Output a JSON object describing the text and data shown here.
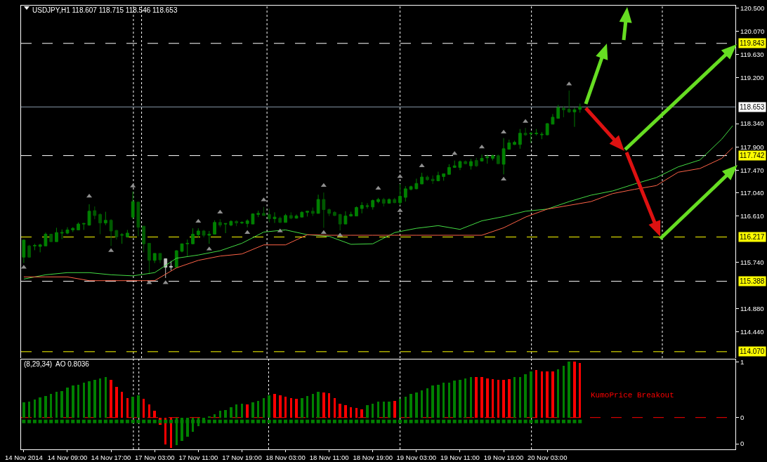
{
  "chart_data": [
    {
      "type": "candlestick",
      "title": "USDJPY,H1 118.607 118.715 118.546 118.653",
      "tick_labels": "y",
      "categories": [
        null,
        null,
        null,
        null,
        null,
        null,
        null,
        null,
        null,
        null,
        null,
        null,
        null,
        null,
        null,
        null,
        null,
        null,
        null,
        null,
        null,
        null,
        null,
        null,
        null,
        null,
        null,
        null,
        null,
        null,
        null,
        null,
        null,
        null,
        null,
        null,
        null,
        null,
        null,
        null,
        null,
        null,
        null,
        null,
        null,
        null,
        null,
        null,
        null,
        null,
        null,
        null,
        null,
        null,
        null,
        null,
        null,
        null,
        null,
        null,
        null,
        null,
        null,
        null,
        null,
        null,
        null,
        null,
        null,
        null,
        null,
        null,
        null,
        null,
        null,
        null,
        null,
        null,
        null,
        null,
        null,
        null,
        null,
        null,
        null,
        null,
        null,
        null,
        null,
        null,
        null,
        null,
        null,
        null,
        null,
        null,
        null,
        null,
        null,
        null,
        null,
        null,
        null,
        null,
        null,
        null,
        null,
        null,
        null,
        null,
        null,
        null,
        null,
        null,
        null,
        null,
        null,
        null,
        null,
        null,
        null,
        null,
        null,
        null,
        null,
        null,
        null,
        null,
        null,
        null,
        null
      ],
      "ohlc": [
        [
          115.84,
          116.17,
          115.73,
          116.16
        ],
        [
          116.05,
          116.07,
          115.83,
          115.84
        ],
        [
          116.05,
          116.09,
          115.97,
          116.06
        ],
        [
          116.04,
          116.09,
          115.93,
          116.07
        ],
        [
          116.05,
          116.3,
          116.05,
          116.27
        ],
        [
          116.27,
          116.27,
          116.13,
          116.13
        ],
        [
          116.13,
          116.39,
          116.13,
          116.3
        ],
        [
          116.29,
          116.36,
          116.18,
          116.3
        ],
        [
          116.29,
          116.4,
          116.27,
          116.35
        ],
        [
          116.35,
          116.4,
          116.31,
          116.38
        ],
        [
          116.35,
          116.49,
          116.35,
          116.46
        ],
        [
          116.46,
          116.48,
          116.35,
          116.47
        ],
        [
          116.44,
          116.83,
          116.43,
          116.7
        ],
        [
          116.71,
          116.79,
          116.55,
          116.62
        ],
        [
          116.64,
          116.66,
          116.27,
          116.48
        ],
        [
          116.48,
          116.69,
          116.44,
          116.53
        ],
        [
          116.53,
          116.55,
          116.05,
          116.33
        ],
        [
          116.34,
          116.35,
          116.17,
          116.22
        ],
        [
          116.25,
          116.29,
          116.09,
          116.26
        ],
        [
          116.22,
          116.35,
          116.22,
          116.29
        ],
        [
          116.59,
          117.07,
          116.56,
          116.88
        ],
        [
          116.87,
          116.88,
          116.23,
          116.4
        ],
        [
          116.42,
          116.42,
          115.93,
          116.09
        ],
        [
          116.1,
          116.1,
          115.52,
          115.78
        ],
        [
          115.78,
          115.91,
          115.73,
          115.91
        ],
        [
          115.91,
          115.91,
          115.73,
          115.79
        ],
        [
          115.81,
          115.81,
          115.45,
          115.65
        ],
        [
          115.65,
          115.77,
          115.59,
          115.67
        ],
        [
          115.65,
          115.97,
          115.64,
          115.96
        ],
        [
          115.95,
          116.09,
          115.93,
          116.09
        ],
        [
          116.09,
          116.17,
          115.86,
          116.1
        ],
        [
          116.09,
          116.38,
          116.08,
          116.27
        ],
        [
          116.26,
          116.38,
          116.21,
          116.33
        ],
        [
          116.33,
          116.35,
          116.21,
          116.25
        ],
        [
          116.25,
          116.33,
          116.09,
          116.27
        ],
        [
          116.27,
          116.53,
          116.27,
          116.49
        ],
        [
          116.49,
          116.55,
          116.4,
          116.44
        ],
        [
          116.46,
          116.47,
          116.29,
          116.47
        ],
        [
          116.44,
          116.53,
          116.42,
          116.51
        ],
        [
          116.51,
          116.53,
          116.42,
          116.48
        ],
        [
          116.48,
          116.51,
          116.46,
          116.49
        ],
        [
          116.47,
          116.55,
          116.4,
          116.52
        ],
        [
          116.46,
          116.66,
          116.46,
          116.65
        ],
        [
          116.64,
          116.71,
          116.59,
          116.66
        ],
        [
          116.66,
          116.78,
          116.62,
          116.62
        ],
        [
          116.64,
          116.75,
          116.49,
          116.56
        ],
        [
          116.56,
          116.68,
          116.48,
          116.59
        ],
        [
          116.57,
          116.6,
          116.48,
          116.49
        ],
        [
          116.49,
          116.65,
          116.49,
          116.62
        ],
        [
          116.62,
          116.68,
          116.55,
          116.57
        ],
        [
          116.57,
          116.64,
          116.56,
          116.61
        ],
        [
          116.59,
          116.7,
          116.59,
          116.68
        ],
        [
          116.68,
          116.7,
          116.6,
          116.7
        ],
        [
          116.7,
          116.77,
          116.61,
          116.66
        ],
        [
          116.66,
          117.01,
          116.66,
          116.92
        ],
        [
          116.92,
          117.05,
          116.39,
          116.73
        ],
        [
          116.73,
          116.75,
          116.61,
          116.66
        ],
        [
          116.68,
          116.7,
          116.61,
          116.62
        ],
        [
          116.64,
          116.65,
          116.34,
          116.46
        ],
        [
          116.46,
          116.7,
          116.46,
          116.61
        ],
        [
          116.61,
          116.69,
          116.6,
          116.64
        ],
        [
          116.61,
          116.79,
          116.61,
          116.77
        ],
        [
          116.75,
          116.87,
          116.66,
          116.81
        ],
        [
          116.79,
          116.85,
          116.75,
          116.8
        ],
        [
          116.78,
          116.92,
          116.73,
          116.9
        ],
        [
          116.88,
          116.95,
          116.85,
          116.92
        ],
        [
          116.92,
          116.95,
          116.79,
          116.85
        ],
        [
          116.85,
          116.94,
          116.85,
          116.92
        ],
        [
          116.92,
          116.95,
          116.85,
          116.86
        ],
        [
          116.86,
          117.21,
          116.81,
          116.98
        ],
        [
          116.96,
          117.17,
          116.88,
          117.12
        ],
        [
          117.11,
          117.18,
          117.09,
          117.16
        ],
        [
          117.12,
          117.31,
          117.11,
          117.22
        ],
        [
          117.21,
          117.42,
          117.21,
          117.34
        ],
        [
          117.34,
          117.37,
          117.27,
          117.29
        ],
        [
          117.3,
          117.37,
          117.21,
          117.27
        ],
        [
          117.27,
          117.44,
          117.26,
          117.37
        ],
        [
          117.35,
          117.4,
          117.27,
          117.4
        ],
        [
          117.39,
          117.58,
          117.39,
          117.52
        ],
        [
          117.52,
          117.65,
          117.52,
          117.55
        ],
        [
          117.52,
          117.65,
          117.47,
          117.63
        ],
        [
          117.63,
          117.65,
          117.58,
          117.59
        ],
        [
          117.55,
          117.68,
          117.48,
          117.63
        ],
        [
          117.65,
          117.7,
          117.53,
          117.55
        ],
        [
          117.64,
          117.76,
          117.63,
          117.69
        ],
        [
          117.7,
          117.76,
          117.59,
          117.72
        ],
        [
          117.69,
          117.76,
          117.65,
          117.74
        ],
        [
          117.74,
          117.76,
          117.59,
          117.59
        ],
        [
          117.58,
          118.07,
          117.39,
          117.87
        ],
        [
          117.86,
          118.04,
          117.86,
          117.98
        ],
        [
          117.95,
          118.02,
          117.94,
          117.99
        ],
        [
          117.95,
          118.24,
          117.87,
          118.16
        ],
        [
          118.16,
          118.26,
          118.11,
          118.13
        ],
        [
          118.15,
          118.18,
          117.98,
          118.16
        ],
        [
          118.15,
          118.24,
          118.12,
          118.16
        ],
        [
          118.13,
          118.18,
          118.05,
          118.14
        ],
        [
          118.13,
          118.35,
          118.12,
          118.34
        ],
        [
          118.33,
          118.52,
          118.33,
          118.46
        ],
        [
          118.44,
          118.69,
          118.44,
          118.64
        ],
        [
          118.63,
          118.67,
          118.46,
          118.6
        ],
        [
          118.61,
          118.96,
          118.54,
          118.56
        ],
        [
          118.56,
          118.64,
          118.28,
          118.6
        ],
        [
          118.607,
          118.715,
          118.546,
          118.653
        ],
        null,
        null,
        null,
        null,
        null,
        null,
        null,
        null,
        null,
        null,
        null,
        null,
        null,
        null,
        null,
        null,
        null,
        null,
        null,
        null,
        null,
        null,
        null,
        null,
        null,
        null,
        null,
        null
      ],
      "colors": [
        "#008000",
        "#005a00",
        "#008000",
        "#008000",
        "#008000",
        "#005a00",
        "#008000",
        "#008000",
        "#008000",
        "#008000",
        "#008000",
        "#008000",
        "#008000",
        "#005a00",
        "#005a00",
        "#008000",
        "#005a00",
        "#005a00",
        "#008000",
        "#008000",
        "#008000",
        "#005a00",
        "#005a00",
        "#005a00",
        "#008000",
        "#005a00",
        "#c0c0c0",
        "#c0c0c0",
        "#008000",
        "#008000",
        "#008000",
        "#008000",
        "#008000",
        "#005a00",
        "#008000",
        "#008000",
        "#005a00",
        "#008000",
        "#008000",
        "#005a00",
        "#008000",
        "#008000",
        "#008000",
        "#008000",
        "#005a00",
        "#005a00",
        "#008000",
        "#005a00",
        "#008000",
        "#005a00",
        "#008000",
        "#008000",
        "#008000",
        "#005a00",
        "#008000",
        "#005a00",
        "#005a00",
        "#005a00",
        "#005a00",
        "#008000",
        "#008000",
        "#008000",
        "#008000",
        "#008000",
        "#008000",
        "#008000",
        "#005a00",
        "#008000",
        "#005a00",
        "#008000",
        "#008000",
        "#008000",
        "#008000",
        "#008000",
        "#005a00",
        "#005a00",
        "#008000",
        "#008000",
        "#008000",
        "#008000",
        "#008000",
        "#005a00",
        "#008000",
        "#005a00",
        "#008000",
        "#008000",
        "#008000",
        "#005a00",
        "#008000",
        "#008000",
        "#008000",
        "#008000",
        "#005a00",
        "#008000",
        "#008000",
        "#008000",
        "#008000",
        "#008000",
        "#008000",
        "#005a00",
        "#005a00",
        "#008000",
        "#008000",
        null,
        null,
        null,
        null,
        null,
        null,
        null,
        null,
        null,
        null,
        null,
        null,
        null,
        null,
        null,
        null,
        null,
        null,
        null,
        null,
        null,
        null,
        null,
        null,
        null,
        null,
        null,
        null
      ],
      "series": [
        {
          "type": "line",
          "color": "#44dd44",
          "values": [
            115.43,
            null,
            null,
            null,
            115.51,
            null,
            null,
            null,
            115.55,
            null,
            null,
            null,
            115.55,
            null,
            null,
            null,
            115.51,
            null,
            null,
            null,
            115.49,
            null,
            null,
            null,
            115.55,
            null,
            null,
            null,
            115.82,
            null,
            null,
            null,
            115.88,
            null,
            null,
            null,
            115.96,
            null,
            null,
            null,
            116.1,
            null,
            null,
            null,
            116.31,
            null,
            null,
            null,
            116.35,
            null,
            null,
            null,
            116.26,
            null,
            null,
            null,
            116.23,
            null,
            null,
            null,
            116.08,
            null,
            null,
            null,
            116.09,
            null,
            null,
            null,
            116.3,
            null,
            null,
            null,
            116.38,
            null,
            null,
            null,
            116.43,
            null,
            null,
            null,
            116.36,
            null,
            null,
            null,
            116.52,
            null,
            null,
            null,
            116.6,
            null,
            null,
            null,
            116.7,
            null,
            null,
            null,
            116.74,
            null,
            null,
            null,
            116.88,
            null,
            null,
            null,
            117.0,
            null,
            null,
            null,
            117.08,
            null,
            null,
            null,
            117.21,
            null,
            null,
            null,
            117.33,
            null,
            null,
            null,
            117.53,
            null,
            null,
            null,
            117.66,
            null,
            null,
            null,
            118.05,
            null,
            118.3
          ]
        },
        {
          "type": "line",
          "color": "#ff6347",
          "values": [
            115.47,
            null,
            null,
            null,
            115.47,
            null,
            null,
            null,
            115.47,
            null,
            null,
            null,
            115.4,
            null,
            null,
            null,
            115.4,
            null,
            null,
            null,
            115.4,
            null,
            null,
            null,
            115.4,
            null,
            null,
            null,
            115.64,
            null,
            null,
            null,
            115.78,
            null,
            null,
            null,
            115.86,
            null,
            null,
            null,
            115.9,
            null,
            null,
            null,
            116.07,
            null,
            null,
            null,
            116.07,
            null,
            null,
            null,
            116.26,
            null,
            null,
            null,
            116.25,
            null,
            null,
            null,
            116.25,
            null,
            null,
            null,
            116.25,
            null,
            null,
            null,
            116.25,
            null,
            null,
            null,
            116.25,
            null,
            null,
            null,
            116.25,
            null,
            null,
            null,
            116.25,
            null,
            null,
            null,
            116.25,
            null,
            null,
            null,
            116.39,
            null,
            null,
            null,
            116.59,
            null,
            null,
            null,
            116.74,
            null,
            null,
            null,
            116.81,
            null,
            null,
            null,
            116.88,
            null,
            null,
            null,
            117.03,
            null,
            null,
            null,
            117.11,
            null,
            null,
            null,
            117.18,
            null,
            null,
            null,
            117.43,
            null,
            null,
            null,
            117.5,
            null,
            null,
            null,
            117.69,
            null,
            117.89
          ]
        },
        {
          "type": "scatter",
          "color": "#909090",
          "marker": "triangle",
          "values": [
            null,
            null,
            null,
            null,
            null,
            null,
            null,
            null,
            null,
            null,
            null,
            null,
            116.98,
            null,
            null,
            null,
            null,
            null,
            null,
            null,
            117.17,
            null,
            null,
            null,
            null,
            null,
            null,
            null,
            null,
            null,
            null,
            null,
            116.51,
            null,
            null,
            null,
            116.68,
            null,
            null,
            null,
            null,
            null,
            null,
            null,
            116.91,
            null,
            null,
            null,
            null,
            null,
            null,
            null,
            null,
            null,
            null,
            117.18,
            null,
            null,
            null,
            null,
            null,
            null,
            null,
            null,
            null,
            117.13,
            null,
            null,
            null,
            117.35,
            null,
            null,
            null,
            117.55,
            null,
            null,
            null,
            null,
            null,
            117.78,
            null,
            null,
            null,
            null,
            117.9,
            null,
            null,
            null,
            118.18,
            null,
            null,
            null,
            118.38,
            null,
            null,
            null,
            null,
            null,
            null,
            null,
            119.08,
            null,
            null,
            null,
            null,
            null,
            null,
            null,
            null,
            null,
            null,
            null,
            null,
            null,
            null,
            null,
            null,
            null,
            null,
            null,
            null,
            null,
            null,
            null,
            null,
            null,
            null,
            null,
            null,
            null,
            null
          ]
        },
        {
          "type": "scatter",
          "color": "#909090",
          "marker": "triangle",
          "values": [
            115.65,
            null,
            null,
            null,
            null,
            null,
            null,
            null,
            null,
            null,
            null,
            null,
            null,
            null,
            null,
            null,
            115.96,
            null,
            null,
            null,
            null,
            null,
            null,
            115.36,
            null,
            null,
            115.36,
            null,
            null,
            null,
            null,
            null,
            null,
            null,
            115.99,
            null,
            null,
            null,
            null,
            null,
            null,
            116.3,
            null,
            null,
            null,
            null,
            null,
            116.33,
            null,
            null,
            null,
            null,
            null,
            null,
            null,
            116.3,
            null,
            null,
            116.25,
            null,
            null,
            null,
            null,
            null,
            null,
            null,
            null,
            null,
            null,
            116.71,
            null,
            null,
            null,
            null,
            null,
            null,
            null,
            null,
            null,
            null,
            null,
            null,
            null,
            null,
            null,
            null,
            null,
            null,
            117.3,
            null,
            null,
            null,
            null,
            null,
            null,
            null,
            null,
            null,
            null,
            null,
            null,
            null,
            null,
            null,
            null,
            null,
            null,
            null,
            null,
            null,
            null,
            null,
            null,
            null,
            null,
            null,
            null,
            null,
            null,
            null,
            null,
            null,
            null,
            null,
            null,
            null,
            null,
            null,
            null,
            null,
            null
          ]
        }
      ],
      "ylim": [
        113.95,
        120.55
      ],
      "yticks": [
        {
          "value": 120.5,
          "label": "120.500"
        },
        {
          "value": 120.07,
          "label": "120.070"
        },
        {
          "value": 119.63,
          "label": "119.630"
        },
        {
          "value": 119.2,
          "label": "119.200"
        },
        {
          "value": 118.34,
          "label": "118.340"
        },
        {
          "value": 117.9,
          "label": "117.900"
        },
        {
          "value": 117.47,
          "label": "117.470"
        },
        {
          "value": 117.04,
          "label": "117.040"
        },
        {
          "value": 116.61,
          "label": "116.610"
        },
        {
          "value": 115.74,
          "label": "115.740"
        },
        {
          "value": 114.88,
          "label": "114.880"
        },
        {
          "value": 114.44,
          "label": "114.440"
        }
      ],
      "ref_lines": [
        {
          "axis": "y",
          "value": 119.843,
          "label": "119.843",
          "color": "#ffffff",
          "line_style": "dashed"
        },
        {
          "axis": "y",
          "value": 118.653,
          "label": "118.653",
          "color": "#8899aa",
          "line_style": "solid"
        },
        {
          "axis": "y",
          "value": 117.742,
          "label": "117.742",
          "color": "#ffffff",
          "line_style": "dashed"
        },
        {
          "axis": "y",
          "value": 116.217,
          "label": "116.217",
          "color": "#ffff00",
          "line_style": "dashed"
        },
        {
          "axis": "y",
          "value": 115.388,
          "label": "115.388",
          "color": "#ffffff",
          "line_style": "dashed"
        },
        {
          "axis": "y",
          "value": 114.07,
          "label": "114.070",
          "color": "#ffff00",
          "line_style": "dashed"
        }
      ]
    },
    {
      "type": "bar",
      "title": "(8,29,34)  AO 0.8036",
      "categories": [
        "14 Nov 2014",
        null,
        null,
        null,
        null,
        null,
        null,
        null,
        "14 Nov 09:00",
        null,
        null,
        null,
        null,
        null,
        null,
        null,
        "14 Nov 17:00",
        null,
        null,
        null,
        null,
        null,
        null,
        null,
        "17 Nov 03:00",
        null,
        null,
        null,
        null,
        null,
        null,
        null,
        "17 Nov 11:00",
        null,
        null,
        null,
        null,
        null,
        null,
        null,
        "17 Nov 19:00",
        null,
        null,
        null,
        null,
        null,
        null,
        null,
        "18 Nov 03:00",
        null,
        null,
        null,
        null,
        null,
        null,
        null,
        "18 Nov 11:00",
        null,
        null,
        null,
        null,
        null,
        null,
        null,
        "18 Nov 19:00",
        null,
        null,
        null,
        null,
        null,
        null,
        null,
        "19 Nov 03:00",
        null,
        null,
        null,
        null,
        null,
        null,
        null,
        "19 Nov 11:00",
        null,
        null,
        null,
        null,
        null,
        null,
        null,
        "19 Nov 19:00",
        null,
        null,
        null,
        null,
        null,
        null,
        null,
        "20 Nov 03:00",
        null,
        null,
        null,
        null,
        null,
        null,
        null,
        null,
        null,
        null,
        null,
        null,
        null,
        null,
        null,
        null,
        null,
        null,
        null,
        null,
        null,
        null,
        null,
        null,
        null,
        null,
        null,
        null,
        null,
        null,
        null,
        null,
        null,
        null
      ],
      "series": [
        {
          "values": [
            0.27,
            0.29,
            0.32,
            0.36,
            0.38,
            0.42,
            0.46,
            0.48,
            0.54,
            0.58,
            0.59,
            0.62,
            0.65,
            0.68,
            0.7,
            0.72,
            0.68,
            0.55,
            0.46,
            0.35,
            0.37,
            0.4,
            0.34,
            0.24,
            0.12,
            -0.13,
            -0.48,
            -0.55,
            -0.5,
            -0.42,
            -0.34,
            -0.26,
            -0.16,
            -0.04,
            0.02,
            0.06,
            0.12,
            0.14,
            0.19,
            0.24,
            0.25,
            0.24,
            0.27,
            0.3,
            0.35,
            0.4,
            0.42,
            0.4,
            0.37,
            0.35,
            0.34,
            0.35,
            0.38,
            0.42,
            0.46,
            0.45,
            0.44,
            0.35,
            0.25,
            0.22,
            0.19,
            0.17,
            0.15,
            0.22,
            0.25,
            0.28,
            0.29,
            0.29,
            0.3,
            0.34,
            0.37,
            0.42,
            0.45,
            0.49,
            0.52,
            0.57,
            0.59,
            0.62,
            0.62,
            0.66,
            0.68,
            0.7,
            0.72,
            0.73,
            0.72,
            0.7,
            0.69,
            0.68,
            0.68,
            0.69,
            0.72,
            0.72,
            0.77,
            0.83,
            0.85,
            0.82,
            0.82,
            0.82,
            0.87,
            0.93,
            1.0,
            1.0,
            0.98,
            null,
            null,
            null,
            null,
            null,
            null,
            null,
            null,
            null,
            null,
            null,
            null,
            null,
            null,
            null,
            null,
            null,
            null,
            null,
            null,
            null,
            null,
            null,
            null,
            null,
            null,
            null,
            null
          ],
          "colors": [
            "#008000",
            "#008000",
            "#008000",
            "#008000",
            "#008000",
            "#008000",
            "#008000",
            "#008000",
            "#008000",
            "#008000",
            "#008000",
            "#008000",
            "#008000",
            "#008000",
            "#008000",
            "#008000",
            "#ff0000",
            "#ff0000",
            "#ff0000",
            "#ff0000",
            "#008000",
            "#008000",
            "#ff0000",
            "#ff0000",
            "#ff0000",
            "#ff0000",
            "#ff0000",
            "#ff0000",
            "#008000",
            "#008000",
            "#008000",
            "#008000",
            "#008000",
            "#008000",
            "#008000",
            "#008000",
            "#008000",
            "#008000",
            "#008000",
            "#008000",
            "#008000",
            "#ff0000",
            "#008000",
            "#008000",
            "#008000",
            "#008000",
            "#ff0000",
            "#ff0000",
            "#ff0000",
            "#ff0000",
            "#ff0000",
            "#008000",
            "#008000",
            "#008000",
            "#008000",
            "#ff0000",
            "#ff0000",
            "#ff0000",
            "#ff0000",
            "#ff0000",
            "#ff0000",
            "#ff0000",
            "#ff0000",
            "#008000",
            "#008000",
            "#008000",
            "#008000",
            "#008000",
            "#ff0000",
            "#008000",
            "#008000",
            "#008000",
            "#008000",
            "#008000",
            "#008000",
            "#008000",
            "#008000",
            "#008000",
            "#008000",
            "#008000",
            "#008000",
            "#008000",
            "#008000",
            "#ff0000",
            "#ff0000",
            "#ff0000",
            "#ff0000",
            "#ff0000",
            "#ff0000",
            "#ff0000",
            "#008000",
            "#008000",
            "#008000",
            "#008000",
            "#ff0000",
            "#ff0000",
            "#ff0000",
            "#ff0000",
            "#008000",
            "#008000",
            "#008000",
            "#ff0000",
            "#ff0000",
            null,
            null,
            null,
            null,
            null,
            null,
            null,
            null,
            null,
            null,
            null,
            null,
            null,
            null,
            null,
            null,
            null,
            null,
            null,
            null,
            null,
            null,
            null,
            null,
            null,
            null,
            null,
            null
          ]
        },
        {
          "type": "scatter",
          "color": "#008000",
          "marker": "square",
          "values": [
            -0.07,
            -0.07,
            -0.07,
            -0.07,
            -0.07,
            -0.07,
            -0.07,
            -0.07,
            -0.07,
            -0.07,
            -0.07,
            -0.07,
            -0.07,
            -0.07,
            -0.07,
            -0.07,
            -0.07,
            -0.07,
            -0.07,
            -0.07,
            -0.07,
            -0.07,
            -0.07,
            -0.07,
            -0.07,
            -0.07,
            -0.07,
            -0.07,
            -0.07,
            -0.07,
            -0.07,
            -0.07,
            -0.07,
            -0.07,
            -0.07,
            -0.07,
            -0.07,
            -0.07,
            -0.07,
            -0.07,
            -0.07,
            -0.07,
            -0.07,
            -0.07,
            -0.07,
            -0.07,
            -0.07,
            -0.07,
            -0.07,
            -0.07,
            -0.07,
            -0.07,
            -0.07,
            -0.07,
            -0.07,
            -0.07,
            -0.07,
            -0.07,
            -0.07,
            -0.07,
            -0.07,
            -0.07,
            -0.07,
            -0.07,
            -0.07,
            -0.07,
            -0.07,
            -0.07,
            -0.07,
            -0.07,
            -0.07,
            -0.07,
            -0.07,
            -0.07,
            -0.07,
            -0.07,
            -0.07,
            -0.07,
            -0.07,
            -0.07,
            -0.07,
            -0.07,
            -0.07,
            -0.07,
            -0.07,
            -0.07,
            -0.07,
            -0.07,
            -0.07,
            -0.07,
            -0.07,
            -0.07,
            -0.07,
            -0.07,
            -0.07,
            -0.07,
            -0.07,
            -0.07,
            -0.07,
            -0.07,
            -0.07,
            -0.07,
            -0.07,
            null,
            null,
            null,
            null,
            null,
            null,
            null,
            null,
            null,
            null,
            null,
            null,
            null,
            null,
            null,
            null,
            null,
            null,
            null,
            null,
            null,
            null,
            null,
            null,
            null,
            null,
            null,
            null
          ]
        }
      ],
      "ylim": [
        -0.57,
        1.04
      ],
      "yticks": [
        1,
        0,
        {
          "value": -0.47,
          "label": "0"
        }
      ],
      "ref_lines": [
        {
          "axis": "y",
          "value": 0,
          "color": "#ff0000",
          "line_style": "dashed"
        }
      ],
      "annotations": [
        "KumoPrice Breakout"
      ]
    }
  ]
}
